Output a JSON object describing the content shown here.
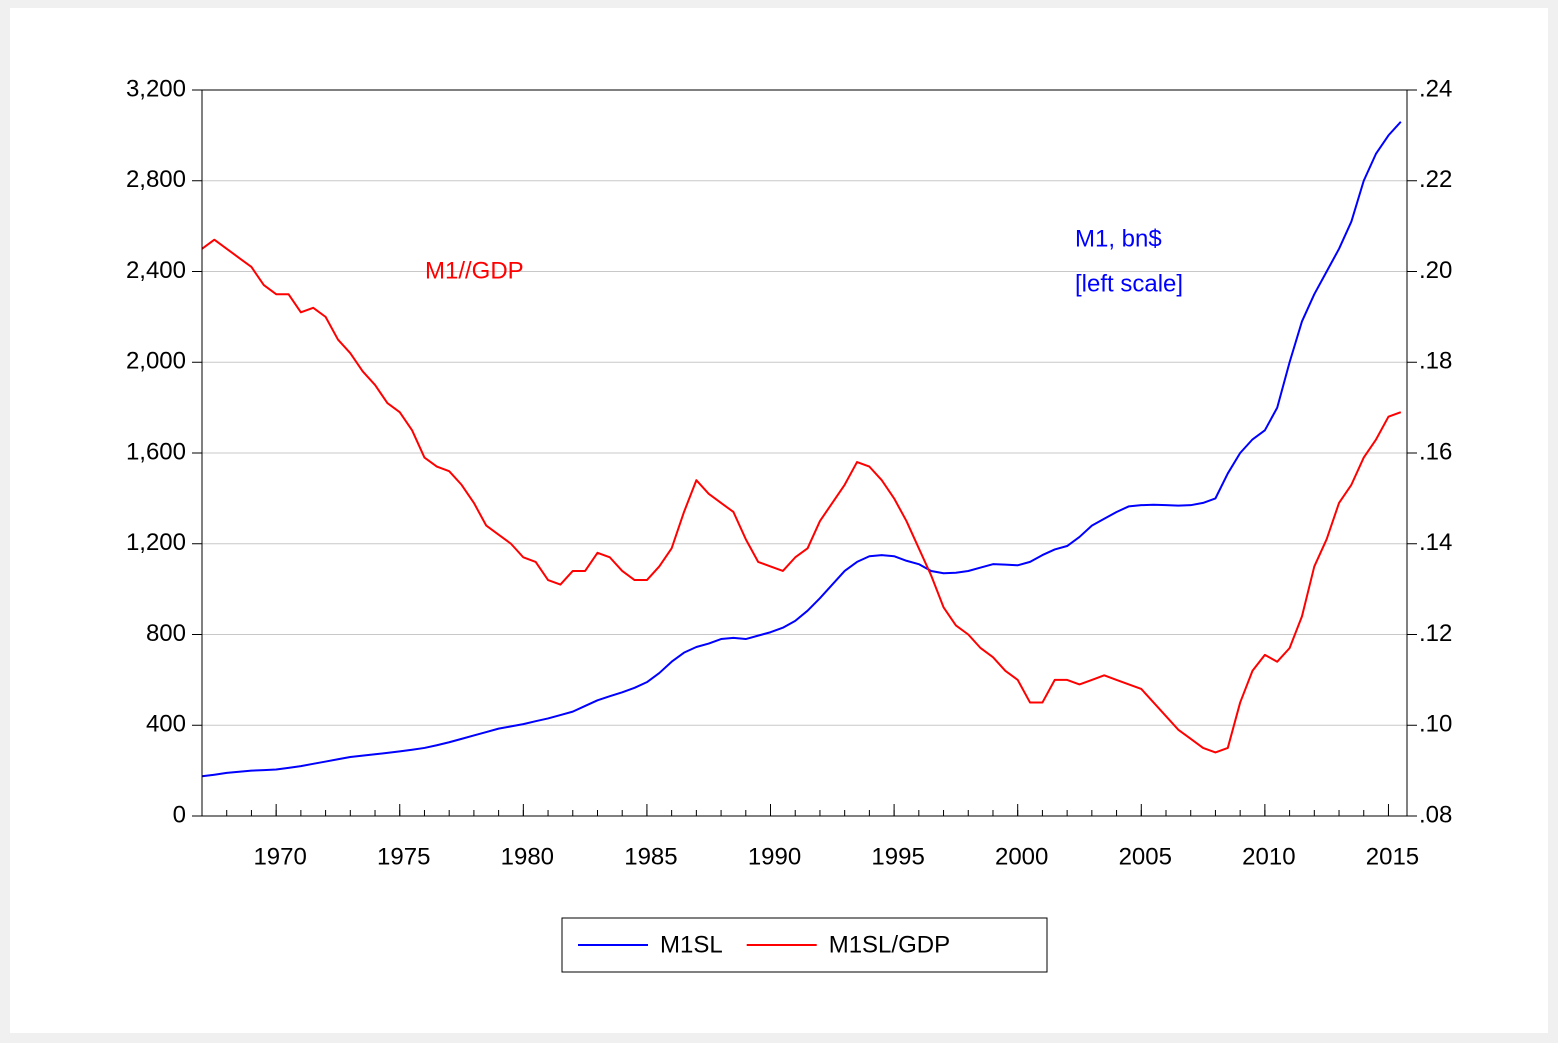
{
  "chart_data": {
    "type": "line",
    "x": [
      1967,
      1967.5,
      1968,
      1968.5,
      1969,
      1969.5,
      1970,
      1970.5,
      1971,
      1971.5,
      1972,
      1972.5,
      1973,
      1973.5,
      1974,
      1974.5,
      1975,
      1975.5,
      1976,
      1976.5,
      1977,
      1977.5,
      1978,
      1978.5,
      1979,
      1979.5,
      1980,
      1980.5,
      1981,
      1981.5,
      1982,
      1982.5,
      1983,
      1983.5,
      1984,
      1984.5,
      1985,
      1985.5,
      1986,
      1986.5,
      1987,
      1987.5,
      1988,
      1988.5,
      1989,
      1989.5,
      1990,
      1990.5,
      1991,
      1991.5,
      1992,
      1992.5,
      1993,
      1993.5,
      1994,
      1994.5,
      1995,
      1995.5,
      1996,
      1996.5,
      1997,
      1997.5,
      1998,
      1998.5,
      1999,
      1999.5,
      2000,
      2000.5,
      2001,
      2001.5,
      2002,
      2002.5,
      2003,
      2003.5,
      2004,
      2004.5,
      2005,
      2005.5,
      2006,
      2006.5,
      2007,
      2007.5,
      2008,
      2008.5,
      2009,
      2009.5,
      2010,
      2010.5,
      2011,
      2011.5,
      2012,
      2012.5,
      2013,
      2013.5,
      2014,
      2014.5,
      2015,
      2015.5
    ],
    "series": [
      {
        "name": "M1SL",
        "color": "#0000ff",
        "axis": "y",
        "values": [
          175,
          182,
          190,
          195,
          200,
          202,
          205,
          212,
          220,
          230,
          240,
          250,
          260,
          266,
          272,
          278,
          285,
          292,
          300,
          312,
          325,
          340,
          355,
          370,
          385,
          395,
          405,
          418,
          430,
          445,
          460,
          485,
          510,
          528,
          545,
          565,
          590,
          630,
          680,
          720,
          745,
          760,
          780,
          785,
          780,
          795,
          810,
          830,
          860,
          905,
          960,
          1020,
          1080,
          1120,
          1145,
          1150,
          1145,
          1125,
          1110,
          1080,
          1070,
          1072,
          1080,
          1095,
          1110,
          1108,
          1105,
          1120,
          1150,
          1175,
          1190,
          1230,
          1280,
          1310,
          1340,
          1365,
          1370,
          1372,
          1370,
          1368,
          1370,
          1380,
          1400,
          1510,
          1600,
          1660,
          1700,
          1800,
          2000,
          2180,
          2300,
          2400,
          2500,
          2620,
          2800,
          2920,
          3000,
          3060
        ]
      },
      {
        "name": "M1SL/GDP",
        "color": "#ff0000",
        "axis": "y2",
        "values": [
          0.205,
          0.207,
          0.205,
          0.203,
          0.201,
          0.197,
          0.195,
          0.195,
          0.191,
          0.192,
          0.19,
          0.185,
          0.182,
          0.178,
          0.175,
          0.171,
          0.169,
          0.165,
          0.159,
          0.157,
          0.156,
          0.153,
          0.149,
          0.144,
          0.142,
          0.14,
          0.137,
          0.136,
          0.132,
          0.131,
          0.134,
          0.134,
          0.138,
          0.137,
          0.134,
          0.132,
          0.132,
          0.135,
          0.139,
          0.147,
          0.154,
          0.151,
          0.149,
          0.147,
          0.141,
          0.136,
          0.135,
          0.134,
          0.137,
          0.139,
          0.145,
          0.149,
          0.153,
          0.158,
          0.157,
          0.154,
          0.15,
          0.145,
          0.139,
          0.133,
          0.126,
          0.122,
          0.12,
          0.117,
          0.115,
          0.112,
          0.11,
          0.105,
          0.105,
          0.11,
          0.11,
          0.109,
          0.11,
          0.111,
          0.11,
          0.109,
          0.108,
          0.105,
          0.102,
          0.099,
          0.097,
          0.095,
          0.094,
          0.095,
          0.105,
          0.112,
          0.1155,
          0.114,
          0.117,
          0.124,
          0.135,
          0.141,
          0.149,
          0.153,
          0.159,
          0.163,
          0.168,
          0.169
        ]
      }
    ],
    "xlim": [
      1967,
      2015.75
    ],
    "xticks": [
      1970,
      1975,
      1980,
      1985,
      1990,
      1995,
      2000,
      2005,
      2010,
      2015
    ],
    "ylim": [
      0,
      3200
    ],
    "yticks": [
      0,
      400,
      800,
      {
        "value": 1200,
        "label": "1,200"
      },
      {
        "value": 1600,
        "label": "1,600"
      },
      {
        "value": 2000,
        "label": "2,000"
      },
      {
        "value": 2400,
        "label": "2,400"
      },
      {
        "value": 2800,
        "label": "2,800"
      },
      {
        "value": 3200,
        "label": "3,200"
      }
    ],
    "y2lim": [
      0.08,
      0.24
    ],
    "y2ticks": [
      {
        "value": 0.08,
        "label": ".08"
      },
      {
        "value": 0.1,
        "label": ".10"
      },
      {
        "value": 0.12,
        "label": ".12"
      },
      {
        "value": 0.14,
        "label": ".14"
      },
      {
        "value": 0.16,
        "label": ".16"
      },
      {
        "value": 0.18,
        "label": ".18"
      },
      {
        "value": 0.2,
        "label": ".20"
      },
      {
        "value": 0.22,
        "label": ".22"
      },
      {
        "value": 0.24,
        "label": ".24"
      }
    ],
    "grid": true,
    "legend": "bottom",
    "annotations": [
      {
        "text": "M1//GDP",
        "color": "#ff0000"
      },
      {
        "text": "M1, bn$",
        "color": "#0000ff"
      },
      {
        "text": "[left scale]",
        "color": "#0000ff"
      }
    ]
  }
}
